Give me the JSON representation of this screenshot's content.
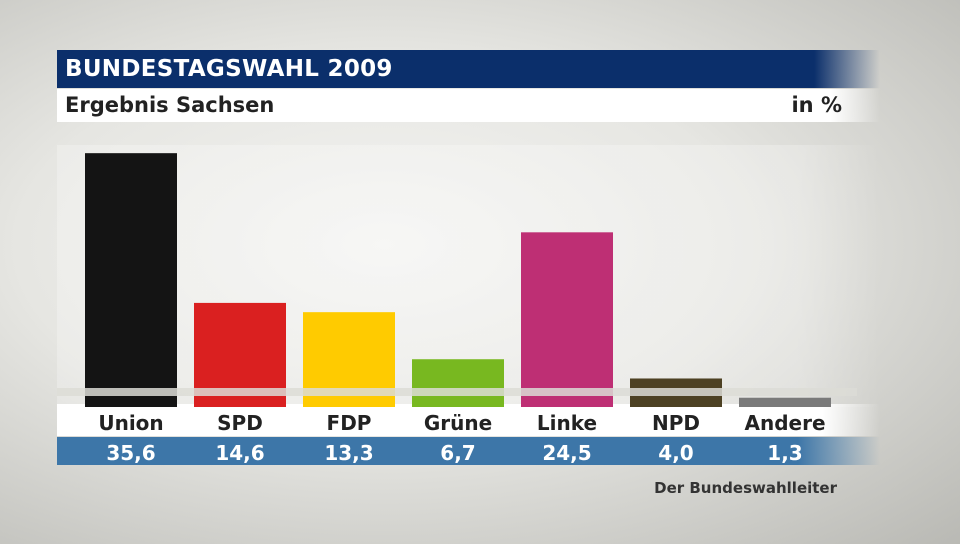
{
  "header": {
    "title": "BUNDESTAGSWAHL 2009",
    "subtitle": "Ergebnis Sachsen",
    "unit": "in %"
  },
  "source": "Der Bundeswahlleiter",
  "chart_data": {
    "type": "bar",
    "title": "BUNDESTAGSWAHL 2009",
    "subtitle": "Ergebnis Sachsen",
    "unit": "in %",
    "categories": [
      "Union",
      "SPD",
      "FDP",
      "Grüne",
      "Linke",
      "NPD",
      "Andere"
    ],
    "values": [
      35.6,
      14.6,
      13.3,
      6.7,
      24.5,
      4.0,
      1.3
    ],
    "value_labels": [
      "35,6",
      "14,6",
      "13,3",
      "6,7",
      "24,5",
      "4,0",
      "1,3"
    ],
    "colors": [
      "#141414",
      "#da2020",
      "#ffcb00",
      "#78b820",
      "#be2f74",
      "#4d4123",
      "#7a7a7a"
    ],
    "grid": false,
    "legend": "none"
  }
}
